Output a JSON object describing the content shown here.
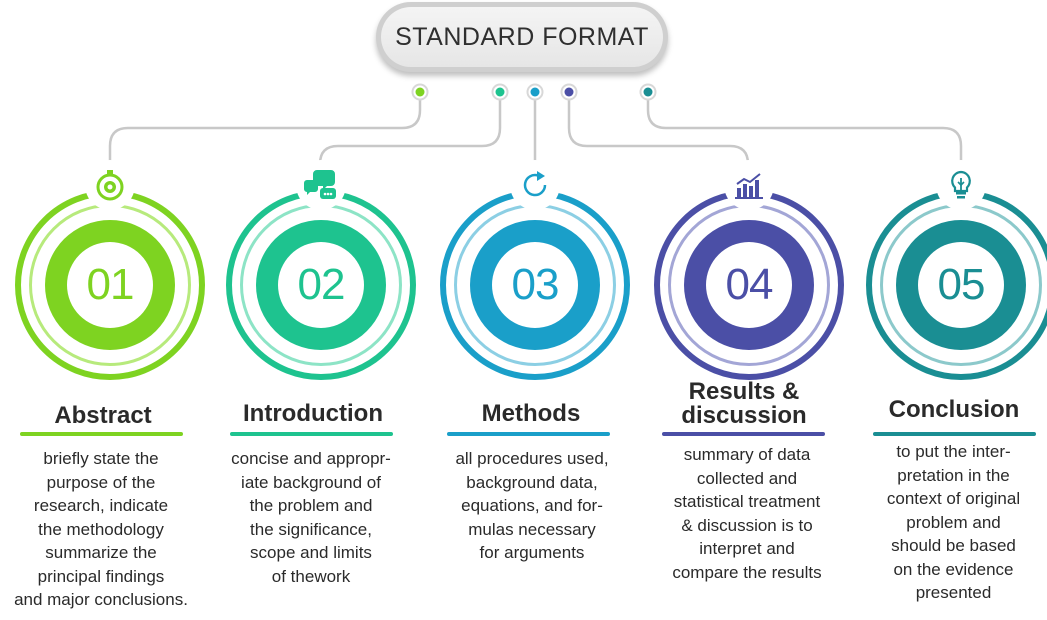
{
  "title": "STANDARD FORMAT",
  "colors": {
    "step1": "#7ed321",
    "step2": "#1ec38f",
    "step3": "#1a9fc9",
    "step4": "#4b4fa6",
    "step5": "#1a8e93",
    "connector": "#c8c8c8"
  },
  "steps": [
    {
      "number": "01",
      "heading": "Abstract",
      "icon": "gear-stopwatch-icon",
      "description": "briefly state the\npurpose of the\nresearch, indicate\nthe  methodology\nsummarize  the\nprincipal findings\nand major conclusions."
    },
    {
      "number": "02",
      "heading": "Introduction",
      "icon": "chat-bubbles-icon",
      "description": "concise and appropr-\niate  background of\nthe problem and\nthe significance,\nscope and limits\nof thework"
    },
    {
      "number": "03",
      "heading": "Methods",
      "icon": "refresh-arrow-icon",
      "description": "all procedures used,\nbackground data,\nequations, and for-\nmulas necessary\nfor arguments"
    },
    {
      "number": "04",
      "heading": "Results &\ndiscussion",
      "icon": "bar-chart-icon",
      "description": "summary of data\ncollected and\nstatistical treatment\n& discussion is to\ninterpret and\ncompare the results"
    },
    {
      "number": "05",
      "heading": "Conclusion",
      "icon": "light-bulb-icon",
      "description": "to put the inter-\npretation in the\ncontext of original\nproblem and\nshould be based\non the evidence\npresented"
    }
  ]
}
